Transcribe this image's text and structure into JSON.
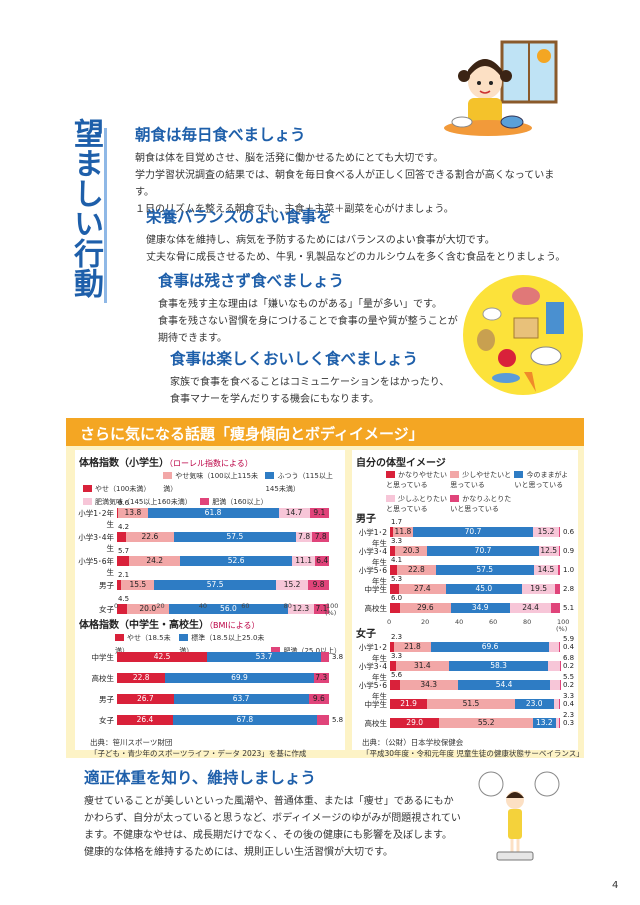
{
  "side_title": "望ましい行動",
  "sections": [
    {
      "title": "朝食は毎日食べましょう",
      "lines": [
        "朝食は体を目覚めさせ、脳を活発に働かせるためにとても大切です。",
        "学力学習状況調査の結果では、朝食を毎日食べる人が正しく回答できる割合が高くなっています。",
        "１日のリズムを整える朝食でも、主食＋主菜＋副菜を心がけましょう。"
      ]
    },
    {
      "title": "栄養バランスのよい食事を",
      "lines": [
        "健康な体を維持し、病気を予防するためにはバランスのよい食事が大切です。",
        "丈夫な骨に成長させるため、牛乳・乳製品などのカルシウムを多く含む食品をとりましょう。"
      ]
    },
    {
      "title": "食事は残さず食べましょう",
      "lines": [
        "食事を残す主な理由は「嫌いなものがある」「量が多い」です。",
        "食事を残さない習慣を身につけることで食事の量や質が整うことが",
        "期待できます。"
      ]
    },
    {
      "title": "食事は楽しくおいしく食べましょう",
      "lines": [
        "家族で食事を食べることはコミュニケーションをはかったり、",
        "食事マナーを学んだりする機会にもなります。"
      ]
    }
  ],
  "box_title": "さらに気になる話題「痩身傾向とボディイメージ」",
  "chart1": {
    "title": "体格指数（小学生）",
    "subtitle": "（ローレル指数による）",
    "legend": [
      "やせ（100未満）",
      "やせ気味（100以上115未満）",
      "ふつう（115以上145未満）",
      "肥満気味（145以上160未満）",
      "肥満（160以上）"
    ],
    "axis": [
      "0",
      "20",
      "40",
      "60",
      "80",
      "100",
      "(%)"
    ],
    "rows": [
      {
        "label": "小学1･2年生",
        "values": [
          "0.6",
          "13.8",
          "61.8",
          "14.7",
          "9.1"
        ],
        "nums": [
          0.6,
          13.8,
          61.8,
          14.7,
          9.1
        ]
      },
      {
        "label": "小学3･4年生",
        "values": [
          "4.2",
          "22.6",
          "57.5",
          "7.8",
          "7.8"
        ],
        "nums": [
          4.2,
          22.6,
          57.5,
          7.8,
          7.8
        ]
      },
      {
        "label": "小学5･6年生",
        "values": [
          "5.7",
          "24.2",
          "52.6",
          "11.1",
          "6.4"
        ],
        "nums": [
          5.7,
          24.2,
          52.6,
          11.1,
          6.4
        ]
      },
      {
        "label": "男子",
        "values": [
          "2.1",
          "15.5",
          "57.5",
          "15.2",
          "9.8"
        ],
        "nums": [
          2.1,
          15.5,
          57.5,
          15.2,
          9.8
        ]
      },
      {
        "label": "女子",
        "values": [
          "4.5",
          "20.0",
          "56.0",
          "12.3",
          "7.1"
        ],
        "nums": [
          4.5,
          20.0,
          56.0,
          12.3,
          7.1
        ]
      }
    ]
  },
  "chart2": {
    "title": "体格指数（中学生・高校生）",
    "subtitle": "（BMIによる）",
    "legend": [
      "やせ（18.5未満）",
      "標準（18.5以上25.0未満）",
      "肥満（25.0以上）"
    ],
    "rows": [
      {
        "label": "中学生",
        "values": [
          "42.5",
          "53.7",
          "3.8"
        ],
        "nums": [
          42.5,
          53.7,
          3.8
        ]
      },
      {
        "label": "高校生",
        "values": [
          "22.8",
          "69.9",
          "7.3"
        ],
        "nums": [
          22.8,
          69.9,
          7.3
        ]
      },
      {
        "label": "男子",
        "values": [
          "26.7",
          "63.7",
          "9.6"
        ],
        "nums": [
          26.7,
          63.7,
          9.6
        ]
      },
      {
        "label": "女子",
        "values": [
          "26.4",
          "67.8",
          "5.8"
        ],
        "nums": [
          26.4,
          67.8,
          5.8
        ]
      }
    ]
  },
  "source1": [
    "出典：笹川スポーツ財団",
    "「子ども・青少年のスポーツライフ・データ 2023」を基に作成"
  ],
  "chart3": {
    "title": "自分の体型イメージ",
    "legend": [
      "かなりやせたいと思っている",
      "少しやせたいと思っている",
      "今のままがよいと思っている",
      "少しふとりたいと思っている",
      "かなりふとりたいと思っている"
    ],
    "boys_label": "男子",
    "girls_label": "女子",
    "axis": [
      "0",
      "20",
      "40",
      "60",
      "80",
      "100",
      "(%)"
    ],
    "boys": [
      {
        "label": "小学1･2年生",
        "values": [
          "1.7",
          "11.8",
          "70.7",
          "15.2",
          "0.6"
        ],
        "nums": [
          1.7,
          11.8,
          70.7,
          15.2,
          0.6
        ]
      },
      {
        "label": "小学3･4年生",
        "values": [
          "3.3",
          "20.3",
          "70.7",
          "12.5",
          "0.9"
        ],
        "nums": [
          3.3,
          20.3,
          70.7,
          12.5,
          0.9
        ]
      },
      {
        "label": "小学5･6年生",
        "values": [
          "4.1",
          "22.8",
          "57.5",
          "14.5",
          "1.0"
        ],
        "nums": [
          4.1,
          22.8,
          57.5,
          14.5,
          1.0
        ]
      },
      {
        "label": "中学生",
        "values": [
          "5.3",
          "27.4",
          "45.0",
          "19.5",
          "2.8"
        ],
        "nums": [
          5.3,
          27.4,
          45.0,
          19.5,
          2.8
        ]
      },
      {
        "label": "高校生",
        "values": [
          "6.0",
          "29.6",
          "34.9",
          "24.4",
          "5.1"
        ],
        "nums": [
          6.0,
          29.6,
          34.9,
          24.4,
          5.1
        ]
      }
    ],
    "girls": [
      {
        "label": "小学1･2年生",
        "values": [
          "2.3",
          "21.8",
          "69.6",
          "5.9",
          "0.4"
        ],
        "nums": [
          2.3,
          21.8,
          69.6,
          5.9,
          0.4
        ]
      },
      {
        "label": "小学3･4年生",
        "values": [
          "3.3",
          "31.4",
          "58.3",
          "6.8",
          "0.2"
        ],
        "nums": [
          3.3,
          31.4,
          58.3,
          6.8,
          0.2
        ]
      },
      {
        "label": "小学5･6年生",
        "values": [
          "5.6",
          "34.3",
          "54.4",
          "5.5",
          "0.2"
        ],
        "nums": [
          5.6,
          34.3,
          54.4,
          5.5,
          0.2
        ]
      },
      {
        "label": "中学生",
        "values": [
          "21.9",
          "51.5",
          "23.0",
          "3.3",
          "0.4"
        ],
        "nums": [
          21.9,
          51.5,
          23.0,
          3.3,
          0.4
        ]
      },
      {
        "label": "高校生",
        "values": [
          "29.0",
          "55.2",
          "13.2",
          "2.3",
          "0.3"
        ],
        "nums": [
          29.0,
          55.2,
          13.2,
          2.3,
          0.3
        ]
      }
    ]
  },
  "source2": [
    "出典：（公財）日本学校保健会",
    "「平成30年度・令和元年度 児童生徒の健康状態サーベイランス」"
  ],
  "bottom": {
    "title": "適正体重を知り、維持しましょう",
    "lines": [
      "痩せていることが美しいといった風潮や、普通体重、または「痩せ」であるにもか",
      "かわらず、自分が太っていると思うなど、ボディイメージのゆがみが問題視されてい",
      "ます。不健康なやせは、成長期だけでなく、その後の健康にも影響を及ぼします。",
      "健康的な体格を維持するためには、規則正しい生活習慣が大切です。"
    ]
  },
  "page_number": "4",
  "colors": {
    "blue": "#1e5faa",
    "chart_blue": "#2e7cc4",
    "red": "#d9213a",
    "pink": "#f2a7a7",
    "light_pink": "#f7c6d8",
    "magenta": "#e0447a",
    "orange": "#f4a623",
    "cream": "#fdf3c6"
  }
}
